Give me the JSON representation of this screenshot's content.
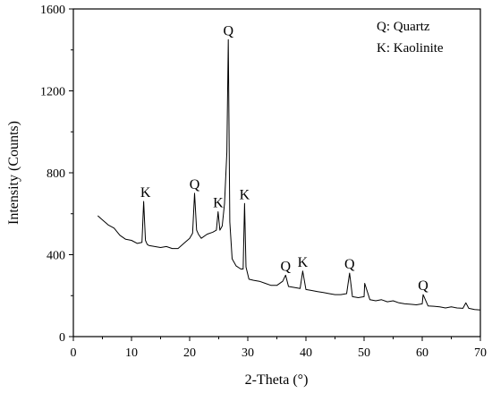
{
  "chart_data": {
    "type": "line",
    "xlabel": "2-Theta (°)",
    "ylabel": "Intensity (Counts)",
    "xlim": [
      0,
      70
    ],
    "ylim": [
      0,
      1600
    ],
    "xticks": [
      0,
      10,
      20,
      30,
      40,
      50,
      60,
      70
    ],
    "yticks": [
      0,
      400,
      800,
      1200,
      1600
    ],
    "grid": false,
    "legend_position": "top-right",
    "legend": [
      "Q: Quartz",
      "K: Kaolinite"
    ],
    "series": [
      {
        "x": [
          4.2,
          5,
          6,
          7,
          8,
          9,
          10,
          11,
          11.8,
          12.1,
          12.4,
          12.7,
          13,
          14,
          15,
          16,
          17,
          18,
          19,
          20,
          20.5,
          20.85,
          21.2,
          21.5,
          22,
          23,
          24,
          24.6,
          24.9,
          25.2,
          25.6,
          26.0,
          26.4,
          26.65,
          26.9,
          27.3,
          28,
          28.8,
          29.2,
          29.45,
          29.7,
          30.2,
          31,
          32,
          33,
          34,
          35,
          36,
          36.5,
          37,
          38,
          39,
          39.45,
          40,
          41,
          42,
          43,
          44,
          45,
          46,
          47,
          47.5,
          48,
          49,
          50,
          50.1,
          51,
          52,
          53,
          54,
          55,
          56,
          57,
          58,
          59,
          60,
          60.15,
          61,
          62,
          63,
          64,
          65,
          66,
          67,
          67.5,
          68,
          69,
          70
        ],
        "y": [
          590,
          570,
          545,
          530,
          495,
          475,
          470,
          455,
          460,
          660,
          470,
          450,
          445,
          440,
          435,
          440,
          430,
          430,
          455,
          480,
          505,
          700,
          520,
          500,
          480,
          500,
          510,
          520,
          610,
          520,
          540,
          650,
          900,
          1450,
          560,
          380,
          345,
          330,
          330,
          650,
          340,
          280,
          275,
          270,
          260,
          250,
          250,
          270,
          300,
          245,
          240,
          235,
          320,
          230,
          225,
          220,
          215,
          210,
          205,
          205,
          210,
          310,
          195,
          190,
          195,
          260,
          180,
          175,
          180,
          170,
          175,
          165,
          160,
          158,
          155,
          160,
          205,
          150,
          148,
          145,
          140,
          145,
          140,
          138,
          165,
          138,
          132,
          130
        ]
      }
    ],
    "annotations": [
      {
        "text": "K",
        "x": 12.4,
        "y": 660
      },
      {
        "text": "Q",
        "x": 20.85,
        "y": 700
      },
      {
        "text": "K",
        "x": 24.9,
        "y": 610
      },
      {
        "text": "Q",
        "x": 26.65,
        "y": 1450
      },
      {
        "text": "K",
        "x": 29.45,
        "y": 650
      },
      {
        "text": "Q",
        "x": 36.5,
        "y": 300
      },
      {
        "text": "K",
        "x": 39.45,
        "y": 320
      },
      {
        "text": "Q",
        "x": 47.5,
        "y": 310
      },
      {
        "text": "Q",
        "x": 60.15,
        "y": 205
      }
    ]
  }
}
